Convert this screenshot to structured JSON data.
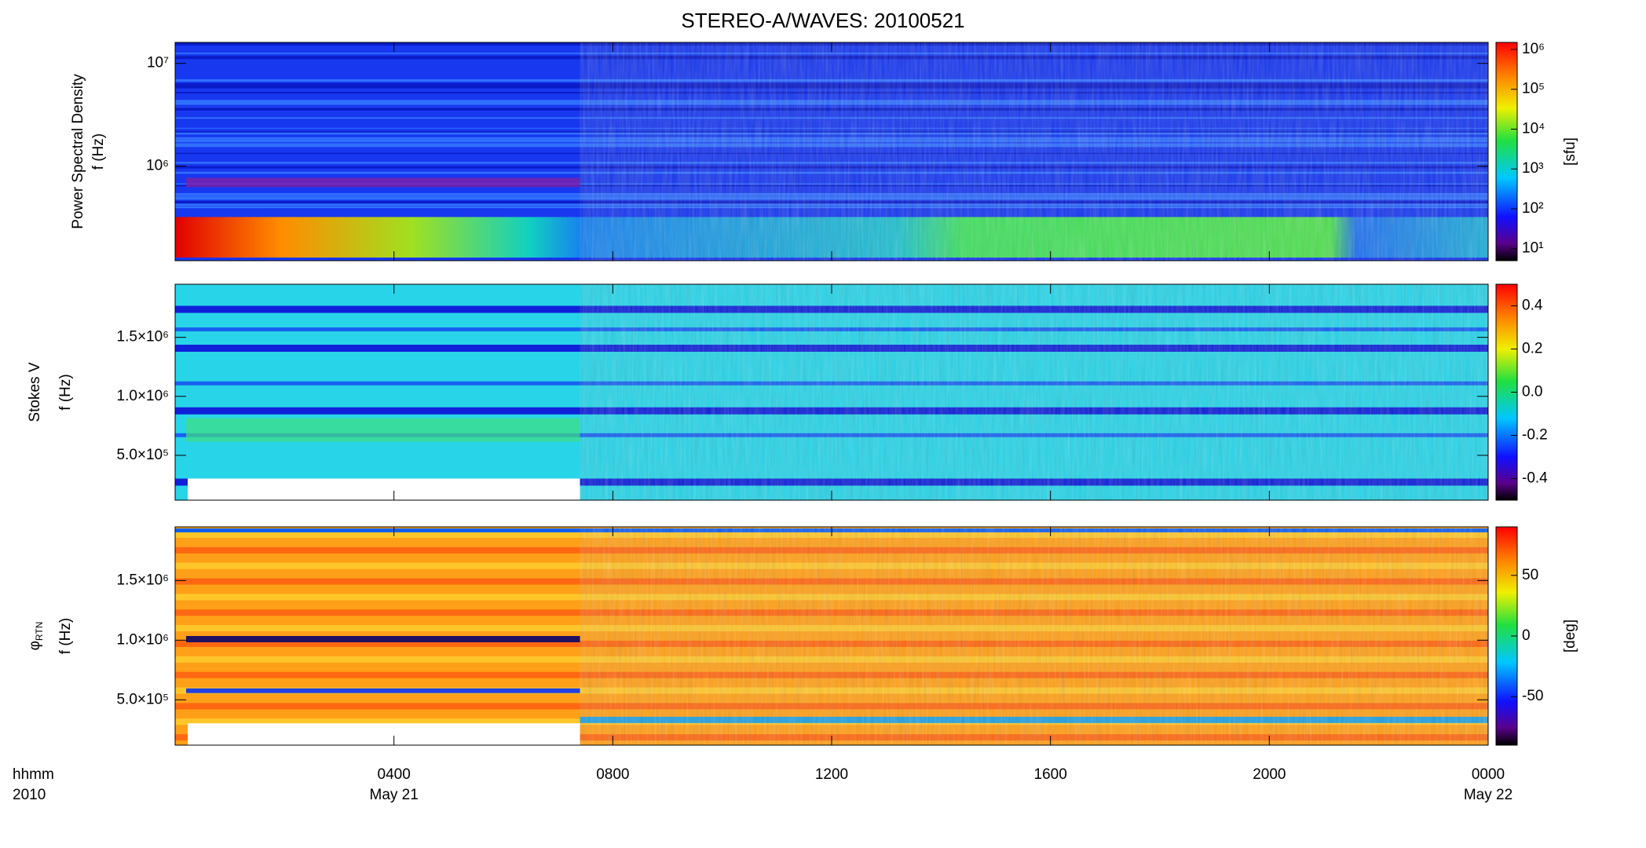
{
  "chart_data": [
    {
      "type": "heatmap",
      "title": "STEREO-A/WAVES: 20100521",
      "quantity": "Power Spectral Density",
      "ylabel": "f (Hz)",
      "ylog": true,
      "ylim": [
        120000,
        16000000
      ],
      "yticks": [
        {
          "value": 1000000,
          "label": "10⁶"
        },
        {
          "value": 10000000,
          "label": "10⁷"
        }
      ],
      "colorbar": {
        "log": true,
        "lim": [
          5,
          1500000
        ],
        "label": "[sfu]",
        "ticks": [
          {
            "value": 10,
            "label": "10¹"
          },
          {
            "value": 100,
            "label": "10²"
          },
          {
            "value": 1000,
            "label": "10³"
          },
          {
            "value": 10000,
            "label": "10⁴"
          },
          {
            "value": 100000,
            "label": "10⁵"
          },
          {
            "value": 1000000,
            "label": "10⁶"
          }
        ]
      }
    },
    {
      "type": "heatmap",
      "quantity": "Stokes V",
      "ylabel": "f (Hz)",
      "ylog": false,
      "ylim": [
        120000,
        1950000
      ],
      "yticks": [
        {
          "value": 500000,
          "label": "5.0×10⁵"
        },
        {
          "value": 1000000,
          "label": "1.0×10⁶"
        },
        {
          "value": 1500000,
          "label": "1.5×10⁶"
        }
      ],
      "colorbar": {
        "log": false,
        "lim": [
          -0.5,
          0.5
        ],
        "ticks": [
          {
            "value": -0.4,
            "label": "-0.4"
          },
          {
            "value": -0.2,
            "label": "-0.2"
          },
          {
            "value": 0,
            "label": "0.0"
          },
          {
            "value": 0.2,
            "label": "0.2"
          },
          {
            "value": 0.4,
            "label": "0.4"
          }
        ]
      }
    },
    {
      "type": "heatmap",
      "quantity": "φ",
      "quantity_subscript": "RTN",
      "ylabel": "f (Hz)",
      "ylog": false,
      "ylim": [
        120000,
        1950000
      ],
      "yticks": [
        {
          "value": 500000,
          "label": "5.0×10⁵"
        },
        {
          "value": 1000000,
          "label": "1.0×10⁶"
        },
        {
          "value": 1500000,
          "label": "1.5×10⁶"
        }
      ],
      "colorbar": {
        "log": false,
        "lim": [
          -90,
          90
        ],
        "label": "[deg]",
        "ticks": [
          -50,
          0,
          50
        ]
      },
      "xlim": [
        0,
        24
      ],
      "xticks": [
        {
          "value": 4,
          "label": "0400"
        },
        {
          "value": 8,
          "label": "0800"
        },
        {
          "value": 12,
          "label": "1200"
        },
        {
          "value": 16,
          "label": "1600"
        },
        {
          "value": 20,
          "label": "2000"
        },
        {
          "value": 24,
          "label": "0000"
        }
      ],
      "xunit": "hhmm",
      "year": "2010",
      "dates": [
        {
          "value": 4,
          "label": "May 21"
        },
        {
          "value": 24,
          "label": "May 22"
        }
      ]
    }
  ]
}
